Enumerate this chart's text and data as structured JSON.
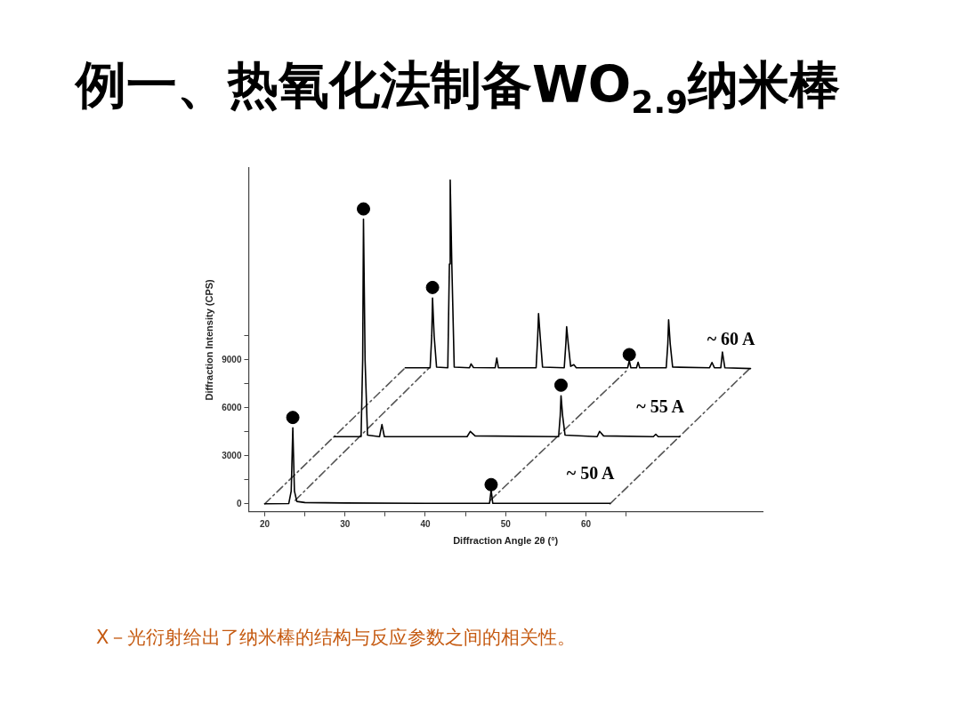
{
  "chart_data": {
    "type": "line",
    "title": "例一、热氧化法制备WO$_{2.9}$纳米棒",
    "xlabel": "Diffraction Angle 2θ (°)",
    "ylabel": "Diffraction Intensity (CPS)",
    "xlim": [
      18,
      82
    ],
    "xticks": [
      20,
      {
        "value": 25,
        "label": null
      },
      30,
      {
        "value": 35,
        "label": null
      },
      40,
      {
        "value": 45,
        "label": null
      },
      50,
      {
        "value": 55,
        "label": null
      },
      60,
      {
        "value": 65,
        "label": null
      }
    ],
    "ylim": [
      -500,
      21000
    ],
    "yticks": [
      0,
      {
        "value": 1500,
        "label": null
      },
      3000,
      {
        "value": 4500,
        "label": null
      },
      6000,
      {
        "value": 7500,
        "label": null
      },
      9000,
      {
        "value": 10500,
        "label": null
      }
    ],
    "grid": false,
    "legend": false,
    "series": [
      {
        "type": "line",
        "name": "~ 50 A",
        "color": "#000000",
        "x": [
          20,
          23.0,
          23.3,
          23.5,
          23.7,
          24,
          25,
          30,
          40,
          48.0,
          48.2,
          48.4,
          63
        ],
        "values": [
          0,
          20,
          800,
          4750,
          800,
          150,
          80,
          50,
          30,
          30,
          870,
          30,
          30
        ]
      },
      {
        "type": "line",
        "name": "~ 55 A",
        "color": "#000000",
        "x": [
          28.7,
          32.0,
          32.2,
          32.3,
          32.5,
          32.8,
          34.3,
          34.6,
          34.9,
          45.2,
          45.6,
          46.2,
          56.6,
          56.8,
          56.9,
          57.1,
          57.4,
          61.4,
          61.7,
          62.2,
          68.4,
          68.7,
          69.0,
          71.7
        ],
        "values": [
          4200,
          4200,
          9000,
          17800,
          9000,
          4300,
          4200,
          4960,
          4200,
          4200,
          4530,
          4250,
          4200,
          5500,
          6760,
          5500,
          4300,
          4200,
          4530,
          4250,
          4200,
          4350,
          4200,
          4200
        ]
      },
      {
        "type": "line",
        "name": "~ 60 A",
        "color": "#000000",
        "x": [
          37.5,
          40.6,
          40.8,
          40.9,
          41.1,
          41.4,
          42.8,
          43.0,
          43.1,
          43.3,
          43.6,
          45.5,
          45.7,
          46.0,
          48.7,
          48.9,
          49.1,
          53.8,
          54.0,
          54.1,
          54.3,
          54.6,
          57.3,
          57.5,
          57.6,
          57.8,
          58.1,
          58.5,
          58.8,
          65.2,
          65.4,
          65.6,
          66.3,
          66.5,
          66.7,
          70.0,
          70.2,
          70.3,
          70.5,
          70.8,
          75.4,
          75.7,
          76.0,
          76.8,
          77.0,
          77.3,
          80.5
        ],
        "values": [
          8510,
          8510,
          10500,
          12870,
          10500,
          8550,
          8510,
          15000,
          20240,
          15000,
          8550,
          8510,
          8750,
          8520,
          8510,
          9110,
          8510,
          8510,
          10500,
          11890,
          10500,
          8550,
          8510,
          10000,
          11070,
          10000,
          8600,
          8700,
          8510,
          8510,
          8950,
          8510,
          8510,
          8850,
          8510,
          8510,
          10000,
          11510,
          10000,
          8550,
          8510,
          8840,
          8510,
          8510,
          9490,
          8510,
          8460
        ]
      },
      {
        "type": "line",
        "color": "#555555",
        "line_style": "dashed",
        "x": [
          20,
          37.5
        ],
        "values": [
          0,
          8510
        ]
      },
      {
        "type": "line",
        "color": "#555555",
        "line_style": "dashed",
        "x": [
          23.8,
          40.5
        ],
        "values": [
          220,
          8510
        ]
      },
      {
        "type": "line",
        "color": "#555555",
        "line_style": "dashed",
        "x": [
          48.1,
          65.0
        ],
        "values": [
          220,
          8290
        ]
      },
      {
        "type": "line",
        "color": "#555555",
        "line_style": "dashed",
        "x": [
          63,
          80.5
        ],
        "values": [
          0,
          8510
        ]
      },
      {
        "type": "scatter",
        "color": "#000000",
        "marker": "circle",
        "x": [
          23.5,
          32.3,
          40.9,
          48.2,
          56.9,
          65.4
        ],
        "values": [
          5400,
          18440,
          13530,
          1200,
          7420,
          9330
        ]
      }
    ],
    "annotations": [
      "X－光衍射给出了纳米棒的结构与反应参数之间的相关性。"
    ]
  }
}
